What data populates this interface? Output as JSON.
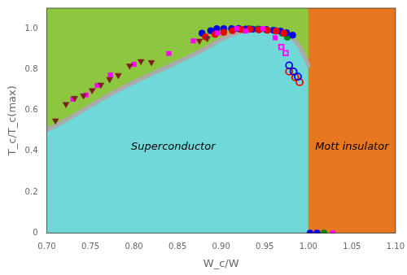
{
  "chart_data": {
    "type": "scatter",
    "xlabel": "W_c/W",
    "ylabel": "T_c/T_c(max)",
    "xlim": [
      0.7,
      1.1
    ],
    "ylim": [
      0.0,
      1.1
    ],
    "xticks": [
      {
        "value": 0.7,
        "label": "0.70"
      },
      0.75,
      {
        "value": 0.8,
        "label": "0.80"
      },
      0.85,
      {
        "value": 0.9,
        "label": "0.90"
      },
      0.95,
      {
        "value": 1.0,
        "label": "1.00"
      },
      1.05,
      {
        "value": 1.1,
        "label": "1.10"
      }
    ],
    "yticks": [
      0,
      0.2,
      0.4,
      0.6,
      0.8,
      {
        "value": 1.0,
        "label": "1.0"
      }
    ],
    "grid": false,
    "regions": [
      {
        "color": "#8dc63f",
        "xlim": [
          0.7,
          1.1
        ]
      },
      {
        "color": "#e87722",
        "xlim": [
          1.0,
          1.1
        ]
      }
    ],
    "annotations": [
      {
        "text": "Superconductor",
        "x": 0.845,
        "y": 0.42
      },
      {
        "text": "Mott insulator",
        "x": 1.05,
        "y": 0.42
      }
    ],
    "series": [
      {
        "type": "line",
        "color": "#aaaaaa",
        "fill_color": "#70d8d8",
        "x": [
          0.7,
          0.71,
          0.72,
          0.73,
          0.74,
          0.75,
          0.76,
          0.77,
          0.78,
          0.79,
          0.8,
          0.81,
          0.82,
          0.83,
          0.84,
          0.85,
          0.86,
          0.87,
          0.88,
          0.89,
          0.9,
          0.91,
          0.92,
          0.93,
          0.935,
          0.94,
          0.945,
          0.95,
          0.955,
          0.96,
          0.965,
          0.97,
          0.975,
          0.98,
          0.985,
          0.99,
          0.995,
          1.0
        ],
        "values": [
          0.505,
          0.525,
          0.548,
          0.572,
          0.597,
          0.622,
          0.648,
          0.672,
          0.695,
          0.717,
          0.738,
          0.758,
          0.778,
          0.797,
          0.816,
          0.836,
          0.856,
          0.876,
          0.898,
          0.922,
          0.948,
          0.966,
          0.98,
          0.991,
          0.996,
          0.999,
          1.0,
          1.0,
          0.999,
          0.997,
          0.993,
          0.986,
          0.975,
          0.96,
          0.94,
          0.91,
          0.87,
          0.82
        ]
      },
      {
        "type": "scatter",
        "color": "#7b2020",
        "marker": "triangle_down",
        "x": [
          0.71,
          0.722,
          0.732,
          0.742,
          0.752,
          0.762,
          0.772,
          0.782,
          0.795,
          0.808,
          0.82,
          0.875,
          0.884
        ],
        "values": [
          0.55,
          0.63,
          0.66,
          0.672,
          0.698,
          0.725,
          0.752,
          0.772,
          0.818,
          0.84,
          0.835,
          0.94,
          0.952
        ]
      },
      {
        "type": "scatter",
        "color": "#ff00ff",
        "marker": "square",
        "x": [
          0.73,
          0.745,
          0.758,
          0.773,
          0.8,
          0.84,
          0.868,
          0.896,
          0.918,
          0.928,
          0.948,
          0.962
        ],
        "values": [
          0.655,
          0.675,
          0.722,
          0.773,
          0.825,
          0.878,
          0.94,
          0.978,
          1.0,
          0.988,
          1.0,
          0.955
        ]
      },
      {
        "type": "scatter",
        "color": "#ff00ff",
        "marker": "square_open",
        "x": [
          0.969,
          0.974
        ],
        "values": [
          0.91,
          0.88
        ]
      },
      {
        "type": "scatter",
        "color": "#ee0000",
        "marker": "circle",
        "x": [
          0.882,
          0.893,
          0.903,
          0.913,
          0.923,
          0.933,
          0.943,
          0.953,
          0.963,
          0.972
        ],
        "values": [
          0.96,
          0.972,
          0.982,
          0.99,
          0.996,
          0.997,
          0.994,
          0.992,
          0.988,
          0.978
        ]
      },
      {
        "type": "scatter",
        "color": "#0000ee",
        "marker": "circle",
        "x": [
          0.878,
          0.888,
          0.895,
          0.903,
          0.912,
          0.92,
          0.928,
          0.936,
          0.944,
          0.952,
          0.96,
          0.968,
          0.975,
          0.982
        ],
        "values": [
          0.978,
          0.99,
          1.0,
          1.0,
          1.0,
          1.0,
          0.998,
          0.997,
          0.996,
          0.995,
          0.992,
          0.988,
          0.98,
          0.968
        ]
      },
      {
        "type": "scatter",
        "color": "#008800",
        "marker": "circle",
        "x": [
          0.92,
          0.932,
          0.942,
          0.952,
          0.962,
          0.97,
          0.976
        ],
        "values": [
          1.0,
          1.0,
          0.998,
          0.994,
          0.99,
          0.978,
          0.958
        ]
      },
      {
        "type": "scatter",
        "color": "#0000ee",
        "marker": "circle_open",
        "x": [
          0.978,
          0.983,
          0.988
        ],
        "values": [
          0.82,
          0.79,
          0.765
        ]
      },
      {
        "type": "scatter",
        "color": "#ee0000",
        "marker": "circle_open",
        "x": [
          0.978,
          0.985,
          0.99
        ],
        "values": [
          0.79,
          0.762,
          0.738
        ]
      },
      {
        "type": "scatter",
        "color": "#0000ee",
        "marker": "circle",
        "x": [
          1.002,
          1.01
        ],
        "values": [
          0.0,
          0.0
        ]
      },
      {
        "type": "scatter",
        "color": "#008800",
        "marker": "circle",
        "x": [
          1.018
        ],
        "values": [
          0.0
        ]
      },
      {
        "type": "scatter",
        "color": "#ff00ff",
        "marker": "square",
        "x": [
          1.028
        ],
        "values": [
          0.0
        ]
      }
    ]
  }
}
